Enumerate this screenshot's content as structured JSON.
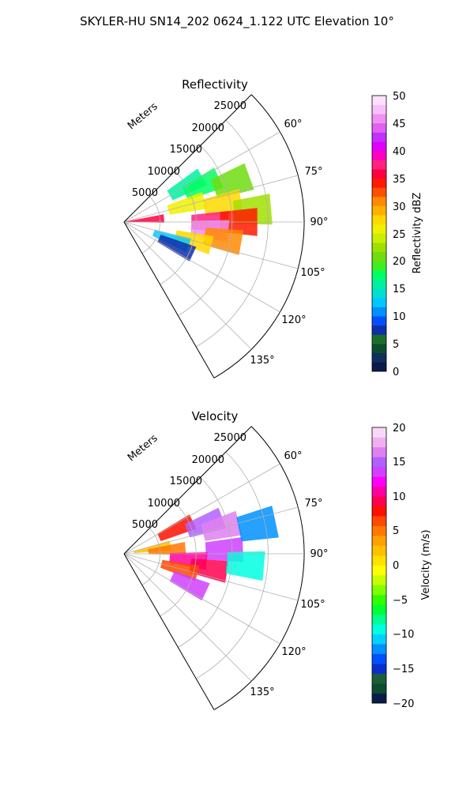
{
  "figure_title": "SKYLER-HU  SN14_202  0624_1.122 UTC Elevation 10°",
  "range_label": "Meters",
  "range_ticks": [
    "5000",
    "10000",
    "15000",
    "20000",
    "25000"
  ],
  "azimuth_ticks": [
    "60°",
    "75°",
    "90°",
    "105°",
    "120°",
    "135°"
  ],
  "panels": [
    {
      "title": "Reflectivity",
      "colorbar_label": "Reflectivity dBZ",
      "colorbar_ticks": [
        "0",
        "5",
        "10",
        "15",
        "20",
        "25",
        "30",
        "35",
        "40",
        "45",
        "50"
      ]
    },
    {
      "title": "Velocity",
      "colorbar_label": "Velocity (m/s)",
      "colorbar_ticks": [
        "−20",
        "−15",
        "−10",
        "−5",
        "0",
        "5",
        "10",
        "15",
        "20"
      ]
    }
  ],
  "chart_data": [
    {
      "type": "heatmap",
      "projection": "polar-sector",
      "title": "Reflectivity",
      "azimuth_range_deg": [
        45,
        150
      ],
      "range_limit_m": [
        0,
        25000
      ],
      "range_ticks_m": [
        5000,
        10000,
        15000,
        20000,
        25000
      ],
      "azimuth_ticks_deg": [
        60,
        75,
        90,
        105,
        120,
        135
      ],
      "colorbar": {
        "label": "Reflectivity dBZ",
        "vmin": 0,
        "vmax": 50
      },
      "cells": [
        {
          "az": 60,
          "r": 10000,
          "value": 15
        },
        {
          "az": 65,
          "r": 12000,
          "value": 18
        },
        {
          "az": 70,
          "r": 16000,
          "value": 20
        },
        {
          "az": 75,
          "r": 9000,
          "value": 25
        },
        {
          "az": 80,
          "r": 14000,
          "value": 28
        },
        {
          "az": 85,
          "r": 18000,
          "value": 22
        },
        {
          "az": 90,
          "r": 12000,
          "value": 38
        },
        {
          "az": 90,
          "r": 16000,
          "value": 34
        },
        {
          "az": 95,
          "r": 12000,
          "value": 45
        },
        {
          "az": 100,
          "r": 14000,
          "value": 30
        },
        {
          "az": 105,
          "r": 10000,
          "value": 27
        },
        {
          "az": 110,
          "r": 7000,
          "value": 12
        },
        {
          "az": 115,
          "r": 8000,
          "value": 8
        },
        {
          "az": 85,
          "r": 3000,
          "value": 35
        }
      ],
      "grid": true
    },
    {
      "type": "heatmap",
      "projection": "polar-sector",
      "title": "Velocity",
      "azimuth_range_deg": [
        45,
        150
      ],
      "range_limit_m": [
        0,
        25000
      ],
      "range_ticks_m": [
        5000,
        10000,
        15000,
        20000,
        25000
      ],
      "azimuth_ticks_deg": [
        60,
        75,
        90,
        105,
        120,
        135
      ],
      "colorbar": {
        "label": "Velocity (m/s)",
        "vmin": -20,
        "vmax": 20
      },
      "cells": [
        {
          "az": 65,
          "r": 8000,
          "value": 8
        },
        {
          "az": 70,
          "r": 12000,
          "value": 15
        },
        {
          "az": 75,
          "r": 14000,
          "value": 16
        },
        {
          "az": 80,
          "r": 4000,
          "value": 2
        },
        {
          "az": 85,
          "r": 6000,
          "value": 5
        },
        {
          "az": 88,
          "r": 14000,
          "value": 14
        },
        {
          "az": 95,
          "r": 9000,
          "value": 10
        },
        {
          "az": 100,
          "r": 12000,
          "value": 9
        },
        {
          "az": 105,
          "r": 8000,
          "value": 6
        },
        {
          "az": 95,
          "r": 17000,
          "value": -10
        },
        {
          "az": 78,
          "r": 19000,
          "value": -12
        },
        {
          "az": 115,
          "r": 10000,
          "value": 14
        }
      ],
      "grid": true
    }
  ]
}
